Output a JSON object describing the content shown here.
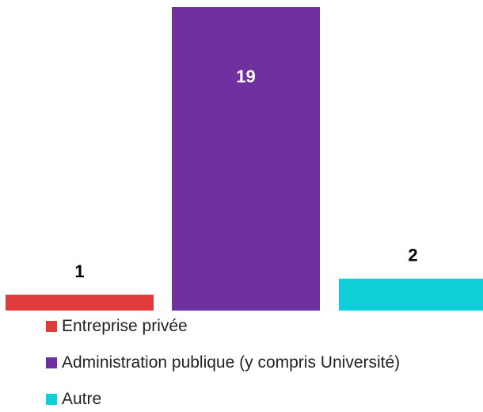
{
  "chart_data": {
    "type": "bar",
    "categories": [
      "Entreprise privée",
      "Administration publique (y compris Université)",
      "Autre"
    ],
    "values": [
      1,
      19,
      2
    ],
    "data_labels": [
      "1",
      "19",
      "2"
    ],
    "colors": [
      "#E03C3C",
      "#7030A0",
      "#0FCFD8"
    ],
    "label_colors": [
      "#000000",
      "#ffffff",
      "#000000"
    ],
    "label_position": [
      "outside",
      "inside",
      "outside"
    ],
    "ylim": [
      0,
      19
    ],
    "grid": false,
    "legend_position": "bottom",
    "title": "",
    "xlabel": "",
    "ylabel": ""
  }
}
